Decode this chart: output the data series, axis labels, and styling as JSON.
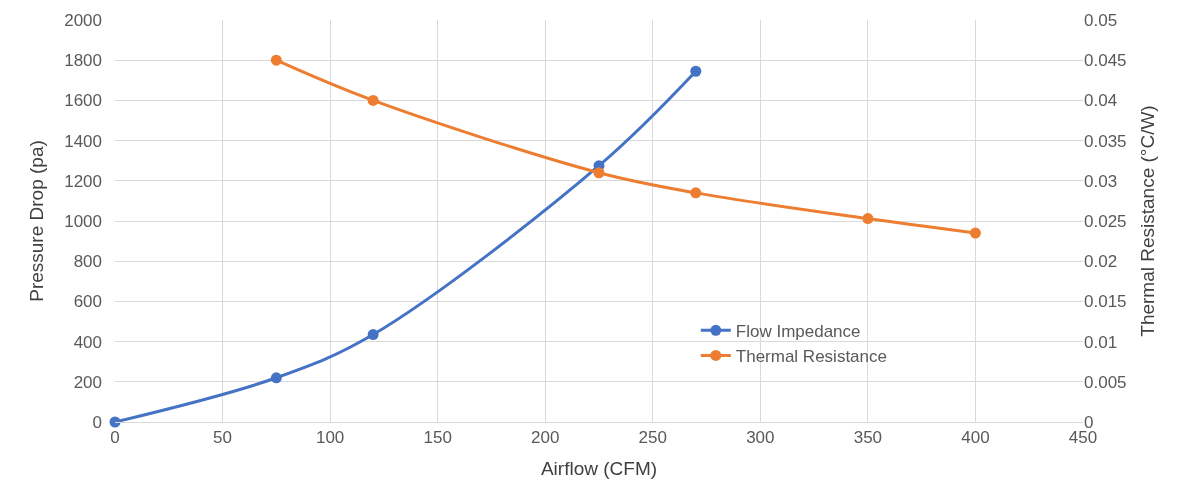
{
  "chart_data": {
    "type": "line",
    "xlabel": "Airflow (CFM)",
    "ylabel": "Pressure Drop (pa)",
    "y2label": "Thermal Resistance (°C/W)",
    "series": [
      {
        "name": "Flow Impedance",
        "color": "#4472c4",
        "x": [
          0,
          75,
          120,
          225,
          270
        ],
        "values": [
          0,
          220,
          435,
          1275,
          1745
        ]
      },
      {
        "name": "Thermal Resistance",
        "color": "#ed7d31",
        "axis": "y2",
        "x": [
          75,
          120,
          225,
          270,
          350,
          400
        ],
        "values": [
          0.045,
          0.04,
          0.031,
          0.0285,
          0.0253,
          0.0235
        ]
      }
    ],
    "xlim": [
      0,
      450
    ],
    "xticks": [
      0,
      50,
      100,
      150,
      200,
      250,
      300,
      350,
      400,
      450
    ],
    "ylim": [
      0,
      2000
    ],
    "yticks": [
      0,
      200,
      400,
      600,
      800,
      1000,
      1200,
      1400,
      1600,
      1800,
      2000
    ],
    "y2lim": [
      0,
      0.05
    ],
    "y2ticks": [
      0,
      0.005,
      0.01,
      0.015,
      0.02,
      0.025,
      0.03,
      0.035,
      0.04,
      0.045,
      0.05
    ],
    "grid": true,
    "legend": "bottom right",
    "marker": "circle",
    "line_style": "solid"
  }
}
